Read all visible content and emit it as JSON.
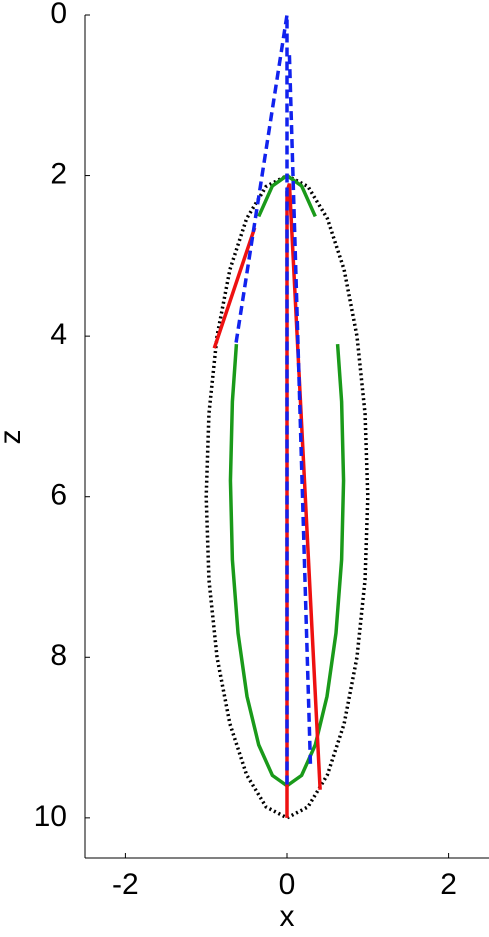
{
  "chart_data": {
    "type": "line",
    "xlabel": "x",
    "ylabel": "z",
    "xlim": [
      -2.5,
      2.5
    ],
    "xticks": [
      -2,
      0,
      2
    ],
    "ylim": [
      0,
      10.5
    ],
    "yticks": [
      0,
      2,
      4,
      6,
      8,
      10
    ],
    "y_reversed": true,
    "series": [
      {
        "color": "#000000",
        "style": "dotted",
        "x": [
          0,
          0.259,
          0.5,
          0.707,
          0.866,
          0.966,
          1,
          0.966,
          0.866,
          0.707,
          0.5,
          0.259,
          0,
          -0.259,
          -0.5,
          -0.707,
          -0.866,
          -0.966,
          -1,
          -0.966,
          -0.866,
          -0.707,
          -0.5,
          -0.259,
          0
        ],
        "values": [
          2,
          2.136,
          2.536,
          3.172,
          4,
          4.964,
          6,
          7.036,
          8,
          8.828,
          9.464,
          9.864,
          10,
          9.864,
          9.464,
          8.828,
          8,
          7.036,
          6,
          4.964,
          4,
          3.172,
          2.536,
          2.136,
          2
        ]
      },
      {
        "color": "#1a9a1a",
        "style": "solid",
        "x": [
          -0.35,
          -0.181,
          0,
          0.181,
          0.35,
          null,
          0.626,
          0.676,
          0.7,
          0.676,
          0.606,
          0.495,
          0.35,
          0.181,
          0,
          -0.181,
          -0.35,
          -0.495,
          -0.606,
          -0.676,
          -0.7,
          -0.676,
          -0.626
        ],
        "values": [
          2.509,
          2.129,
          2,
          2.129,
          2.509,
          null,
          4.1,
          4.816,
          5.8,
          6.784,
          7.7,
          8.487,
          9.091,
          9.471,
          9.6,
          9.471,
          9.091,
          8.487,
          7.7,
          6.784,
          5.8,
          4.816,
          4.1
        ]
      },
      {
        "color": "#ee1111",
        "style": "solid",
        "x": [
          -0.9,
          -0.4,
          null,
          0.41,
          0.03,
          0,
          0
        ],
        "values": [
          4.15,
          2.65,
          null,
          9.65,
          2.1,
          2.2,
          10
        ]
      },
      {
        "color": "#1122ee",
        "style": "dashed",
        "x": [
          -0.63,
          0,
          0,
          null,
          0.03,
          0.29
        ],
        "values": [
          4.08,
          0,
          9.6,
          null,
          0.5,
          9.33
        ]
      }
    ]
  }
}
